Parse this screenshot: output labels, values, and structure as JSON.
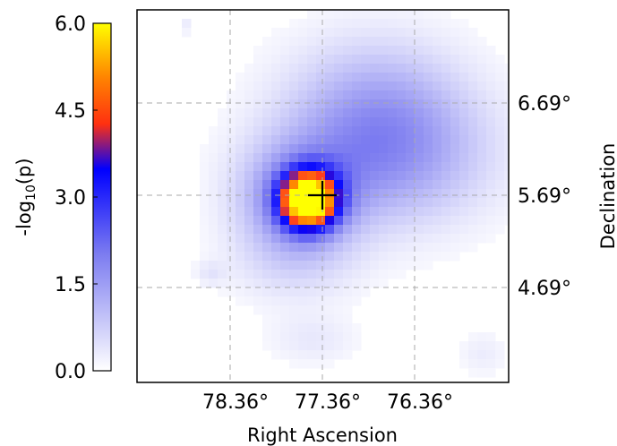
{
  "chart_data": {
    "type": "heatmap",
    "title": "",
    "xlabel": "Right Ascension",
    "ylabel": "Declination",
    "x_ticks": [
      {
        "label": "78.36°",
        "value": 78.36
      },
      {
        "label": "77.36°",
        "value": 77.36
      },
      {
        "label": "76.36°",
        "value": 76.36
      }
    ],
    "y_ticks": [
      {
        "label": "6.69°",
        "value": 6.69
      },
      {
        "label": "5.69°",
        "value": 5.69
      },
      {
        "label": "4.69°",
        "value": 4.69
      }
    ],
    "x_axis_reversed": true,
    "grid": true,
    "marker": {
      "symbol": "+",
      "ra": 77.36,
      "dec": 5.69
    },
    "colorbar": {
      "label": "-log10(p)",
      "label_prefix": "-log",
      "label_sub": "10",
      "label_suffix": "(p)",
      "range": [
        0.0,
        6.0
      ],
      "ticks": [
        "0.0",
        "1.5",
        "3.0",
        "4.5",
        "6.0"
      ],
      "colors": [
        "#ffffff",
        "#7a7af0",
        "#0000ff",
        "#ff3010",
        "#ff8800",
        "#ffff00"
      ]
    }
  }
}
